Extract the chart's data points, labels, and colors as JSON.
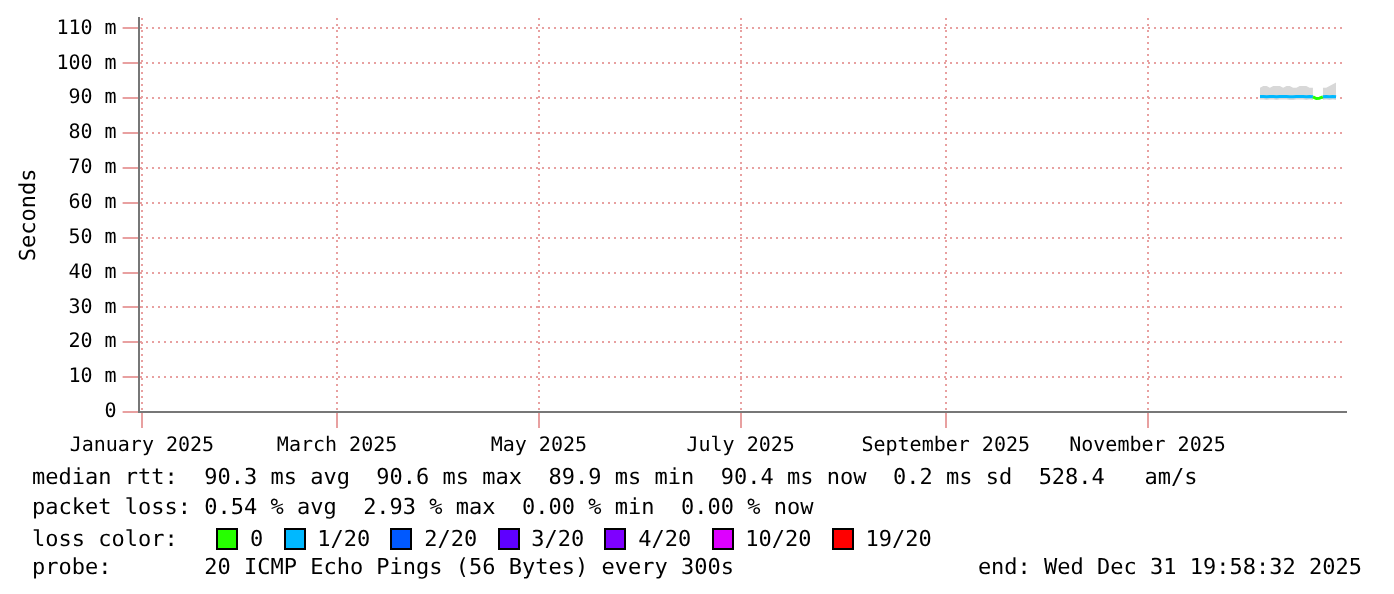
{
  "chart_data": {
    "type": "line",
    "ylabel": "Seconds",
    "legend_title": "loss color:",
    "legend": "bottom",
    "grid": true,
    "marker": "none",
    "line_style": "solid",
    "xlim": [
      "2024-12-31",
      "2025-12-31"
    ],
    "xticks": [
      {
        "value": "2025-01-01",
        "label": "January 2025"
      },
      {
        "value": "2025-03-01",
        "label": "March 2025"
      },
      {
        "value": "2025-05-01",
        "label": "May 2025"
      },
      {
        "value": "2025-07-01",
        "label": "July 2025"
      },
      {
        "value": "2025-09-01",
        "label": "September 2025"
      },
      {
        "value": "2025-11-01",
        "label": "November 2025"
      }
    ],
    "ylim": [
      0,
      113
    ],
    "yticks": [
      0,
      {
        "value": 10,
        "label": "10 m"
      },
      {
        "value": 20,
        "label": "20 m"
      },
      {
        "value": 30,
        "label": "30 m"
      },
      {
        "value": 40,
        "label": "40 m"
      },
      {
        "value": 50,
        "label": "50 m"
      },
      {
        "value": 60,
        "label": "60 m"
      },
      {
        "value": 70,
        "label": "70 m"
      },
      {
        "value": 80,
        "label": "80 m"
      },
      {
        "value": 90,
        "label": "90 m"
      },
      {
        "value": 100,
        "label": "100 m"
      },
      {
        "value": 110,
        "label": "110 m"
      }
    ],
    "series": [
      {
        "name": "0",
        "color": "#26ff00",
        "x": [
          "2025-12-21",
          "2025-12-22",
          "2025-12-23",
          "2025-12-24"
        ],
        "values": [
          90.4,
          89.9,
          90.0,
          90.4
        ]
      },
      {
        "name": "1/20",
        "color": "#00b8ff",
        "x": [
          "2025-12-05",
          "2025-12-06",
          "2025-12-07",
          "2025-12-08",
          "2025-12-09",
          "2025-12-10",
          "2025-12-11",
          "2025-12-12",
          "2025-12-13",
          "2025-12-14",
          "2025-12-15",
          "2025-12-16",
          "2025-12-17",
          "2025-12-18",
          "2025-12-19",
          "2025-12-20",
          "2025-12-21"
        ],
        "values": [
          90.5,
          90.5,
          90.4,
          90.5,
          90.5,
          90.4,
          90.5,
          90.5,
          90.5,
          90.4,
          90.4,
          90.5,
          90.5,
          90.5,
          90.4,
          90.5,
          90.4
        ],
        "lower": [
          89.6,
          89.6,
          89.5,
          89.6,
          89.6,
          89.5,
          89.6,
          89.6,
          89.6,
          89.5,
          89.5,
          89.6,
          89.6,
          89.6,
          89.5,
          89.6,
          89.5
        ],
        "upper": [
          93.0,
          93.5,
          93.5,
          93.0,
          93.5,
          93.5,
          93.5,
          93.0,
          93.5,
          93.5,
          93.0,
          93.0,
          93.5,
          93.5,
          93.5,
          93.0,
          93.0
        ]
      },
      {
        "color": "#00b8ff",
        "x": [
          "2025-12-24",
          "2025-12-25",
          "2025-12-26",
          "2025-12-27",
          "2025-12-28"
        ],
        "values": [
          90.4,
          90.5,
          90.4,
          90.5,
          90.4
        ],
        "lower": [
          89.5,
          89.6,
          89.5,
          89.6,
          89.5
        ],
        "upper": [
          93.0,
          93.0,
          93.5,
          94.0,
          94.5
        ]
      },
      {
        "name": "2/20",
        "color": "#0059ff"
      },
      {
        "name": "3/20",
        "color": "#5e00ff"
      },
      {
        "name": "4/20",
        "color": "#7e00ff"
      },
      {
        "name": "10/20",
        "color": "#dd00ff"
      },
      {
        "name": "19/20",
        "color": "#ff0000"
      }
    ],
    "annotations": [
      "median rtt:  90.3 ms avg  90.6 ms max  89.9 ms min  90.4 ms now  0.2 ms sd  528.4   am/s",
      "packet loss: 0.54 % avg  2.93 % max  0.00 % min  0.00 % now",
      "probe:       20 ICMP Echo Pings (56 Bytes) every 300s",
      "end: Wed Dec 31 19:58:32 2025"
    ]
  }
}
